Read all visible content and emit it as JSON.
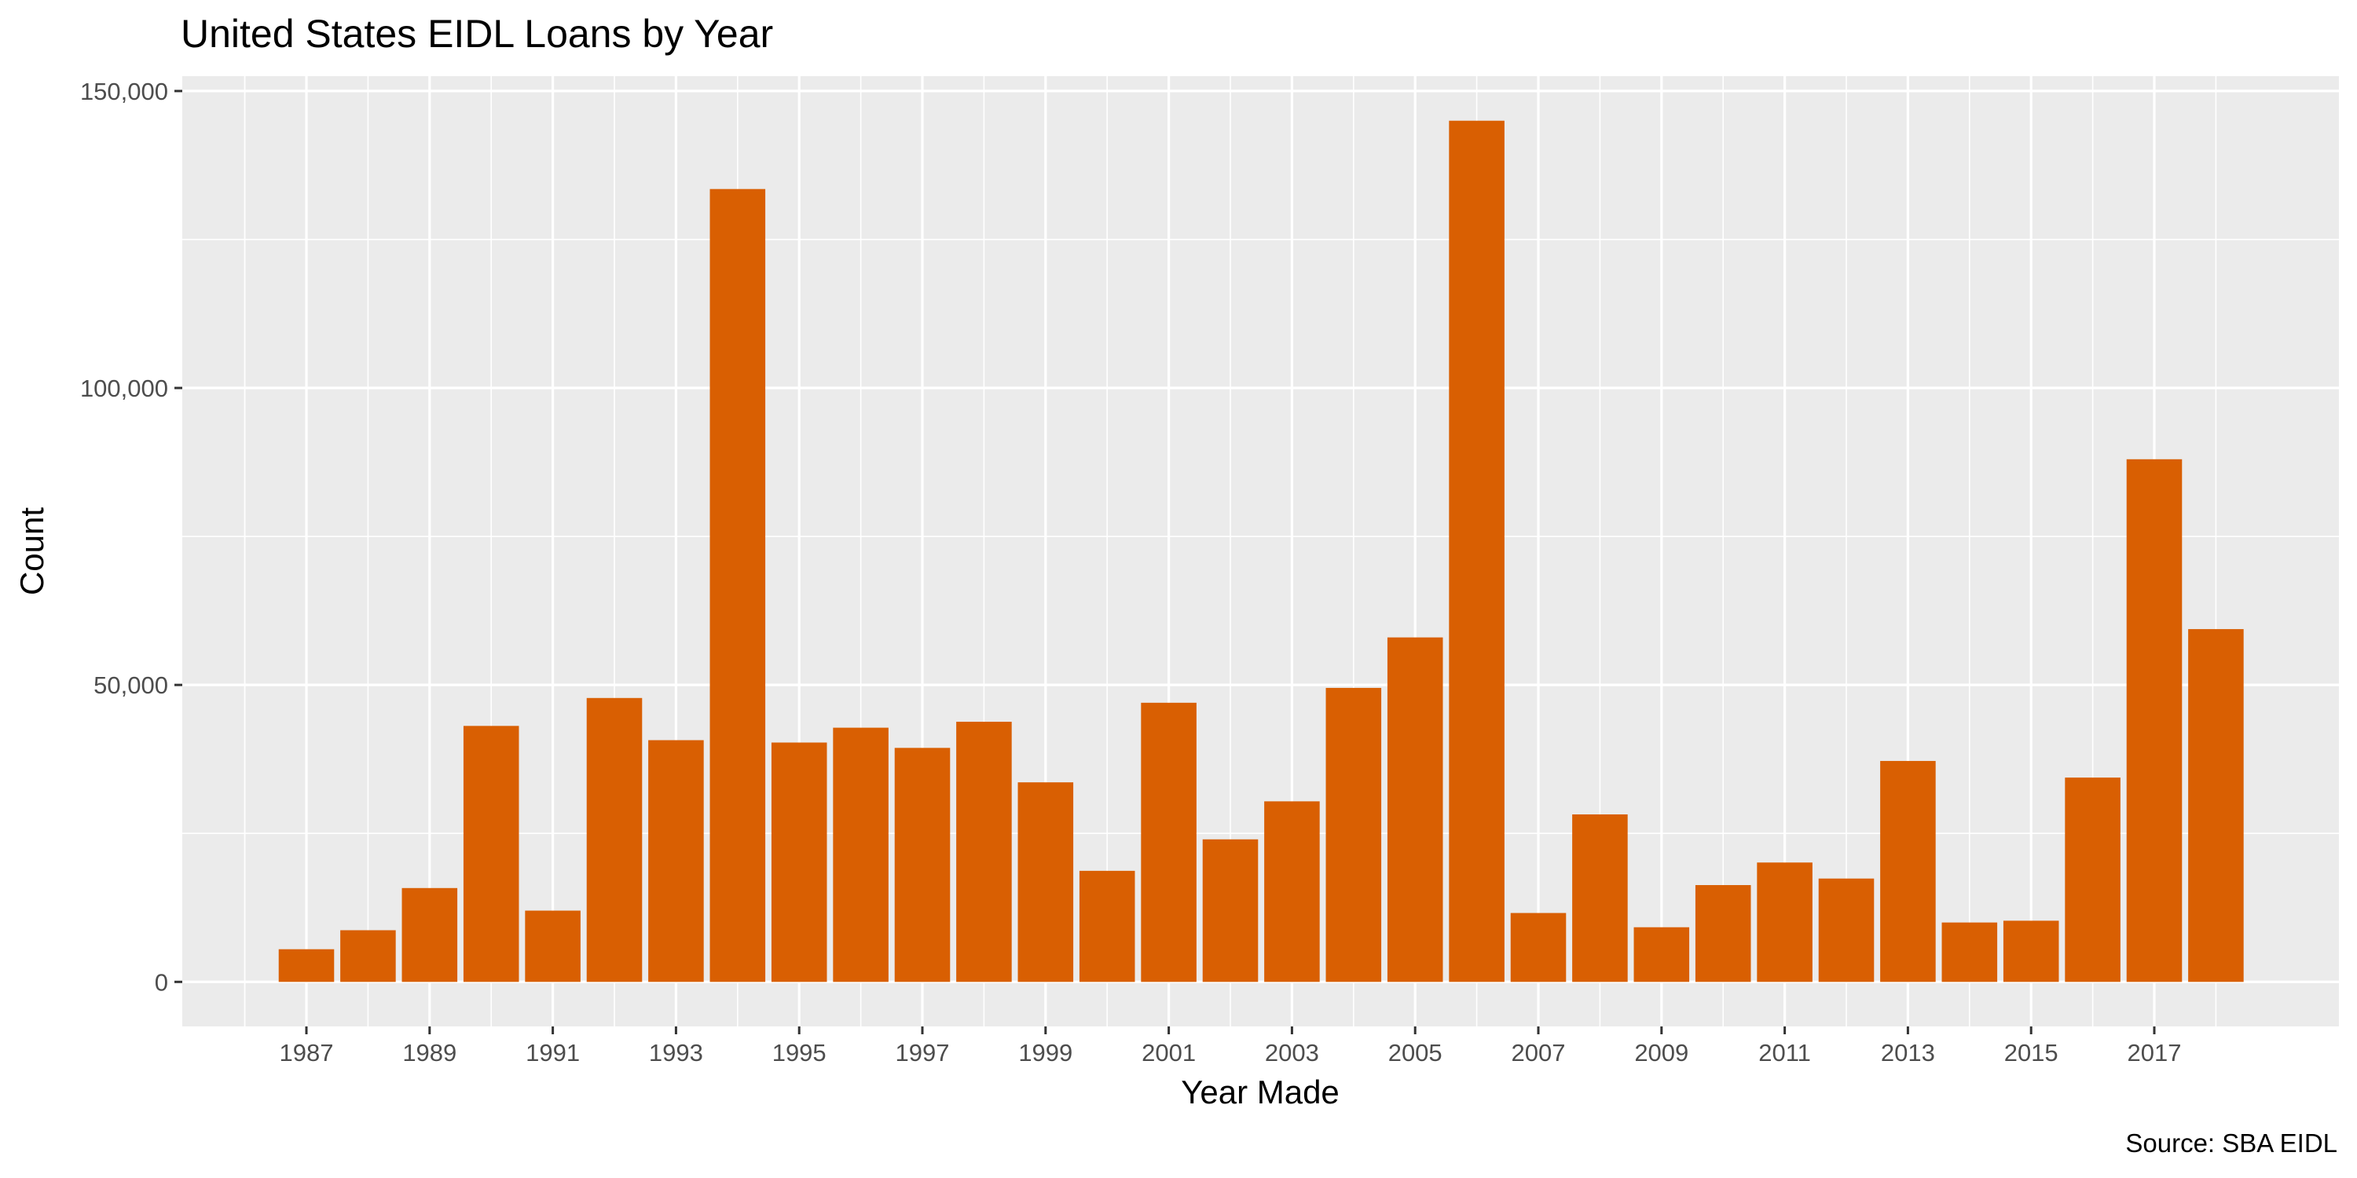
{
  "chart_data": {
    "type": "bar",
    "title": "United States EIDL Loans by Year",
    "xlabel": "Year Made",
    "ylabel": "Count",
    "caption": "Source: SBA EIDL",
    "categories": [
      "1987",
      "1988",
      "1989",
      "1990",
      "1991",
      "1992",
      "1993",
      "1994",
      "1995",
      "1996",
      "1997",
      "1998",
      "1999",
      "2000",
      "2001",
      "2002",
      "2003",
      "2004",
      "2005",
      "2006",
      "2007",
      "2008",
      "2009",
      "2010",
      "2011",
      "2012",
      "2013",
      "2014",
      "2015",
      "2016",
      "2017",
      "2018"
    ],
    "values": [
      5500,
      8700,
      15800,
      43100,
      12000,
      47800,
      40700,
      133500,
      40300,
      42800,
      39400,
      43800,
      33600,
      18700,
      47000,
      24000,
      30400,
      49500,
      58000,
      145000,
      11600,
      28200,
      9200,
      16300,
      20100,
      17400,
      37200,
      10000,
      10300,
      34400,
      88000,
      59400
    ],
    "xticks": [
      "1987",
      "1989",
      "1991",
      "1993",
      "1995",
      "1997",
      "1999",
      "2001",
      "2003",
      "2005",
      "2007",
      "2009",
      "2011",
      "2013",
      "2015",
      "2017"
    ],
    "yticks": [
      0,
      50000,
      100000,
      150000
    ],
    "ytick_labels": [
      "0",
      "50,000",
      "100,000",
      "150,000"
    ],
    "ylim": [
      -7500,
      152500
    ],
    "bar_color": "#d95f02",
    "panel_color": "#ebebeb",
    "grid": true,
    "legend": "none"
  }
}
